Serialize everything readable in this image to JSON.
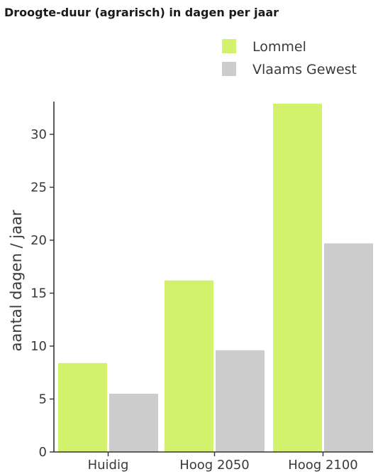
{
  "chart_data": {
    "type": "bar",
    "title": "Droogte-duur (agrarisch) in dagen per jaar",
    "ylabel": "aantal dagen / jaar",
    "xlabel": "",
    "categories": [
      "Huidig",
      "Hoog 2050",
      "Hoog 2100"
    ],
    "series": [
      {
        "name": "Lommel",
        "color": "#d2f26e",
        "values": [
          8.4,
          16.2,
          32.9
        ]
      },
      {
        "name": "Vlaams Gewest",
        "color": "#cccccc",
        "values": [
          5.5,
          9.6,
          19.7
        ]
      }
    ],
    "ylim": [
      0,
      33
    ],
    "yticks": [
      "0",
      "5",
      "10",
      "15",
      "20",
      "25",
      "30"
    ],
    "legend": "top-right",
    "grid": false
  }
}
